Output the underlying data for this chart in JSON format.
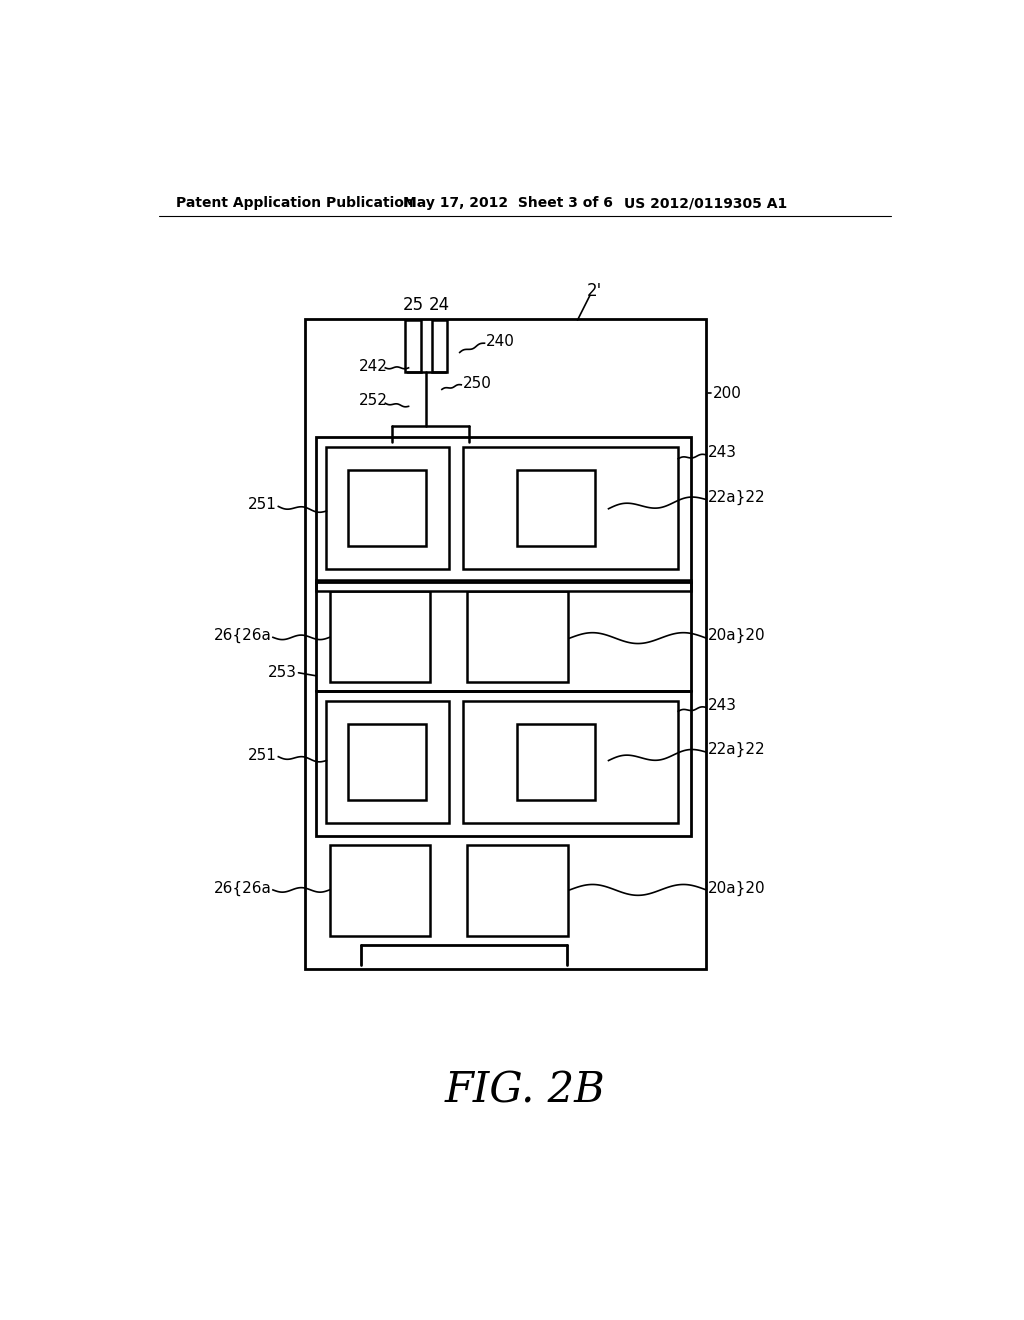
{
  "title": "FIG. 2B",
  "header_left": "Patent Application Publication",
  "header_center": "May 17, 2012  Sheet 3 of 6",
  "header_right": "US 2012/0119305 A1",
  "bg_color": "#ffffff",
  "line_color": "#000000",
  "fig_width": 10.24,
  "fig_height": 13.2,
  "dpi": 100
}
